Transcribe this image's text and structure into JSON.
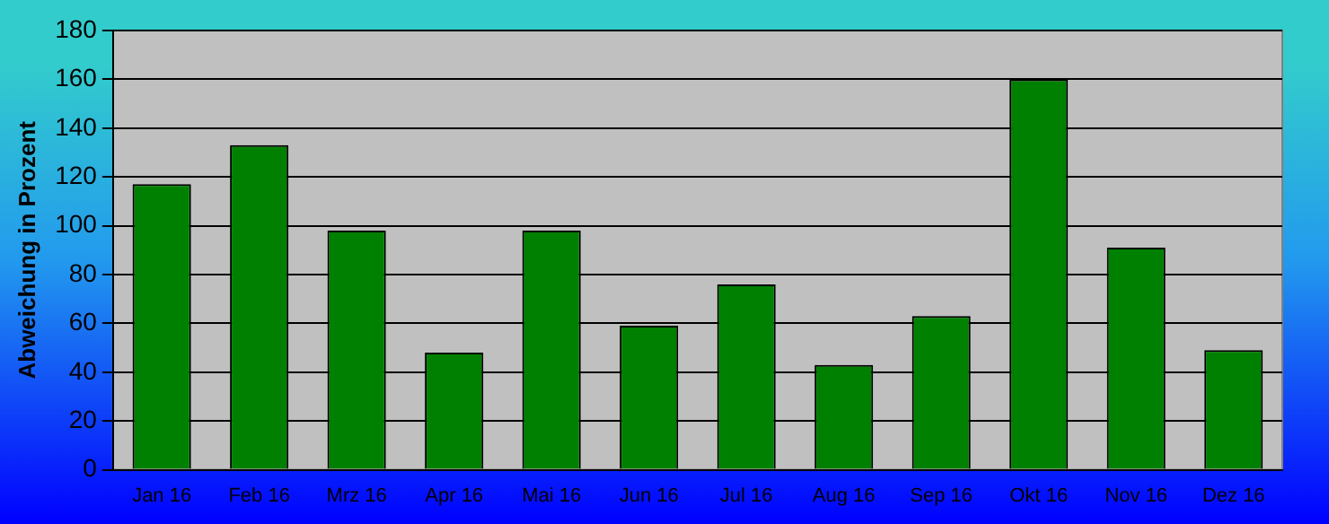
{
  "chart_data": {
    "type": "bar",
    "ylabel": "Abweichung in Prozent",
    "categories": [
      "Jan 16",
      "Feb 16",
      "Mrz 16",
      "Apr 16",
      "Mai 16",
      "Jun 16",
      "Jul 16",
      "Aug 16",
      "Sep 16",
      "Okt 16",
      "Nov 16",
      "Dez 16"
    ],
    "values": [
      117,
      133,
      98,
      48,
      98,
      59,
      76,
      43,
      63,
      160,
      91,
      49
    ],
    "color": "#008000",
    "ylim": [
      0,
      180
    ],
    "yticks": [
      0,
      20,
      40,
      60,
      80,
      100,
      120,
      140,
      160,
      180
    ],
    "grid": "y"
  }
}
